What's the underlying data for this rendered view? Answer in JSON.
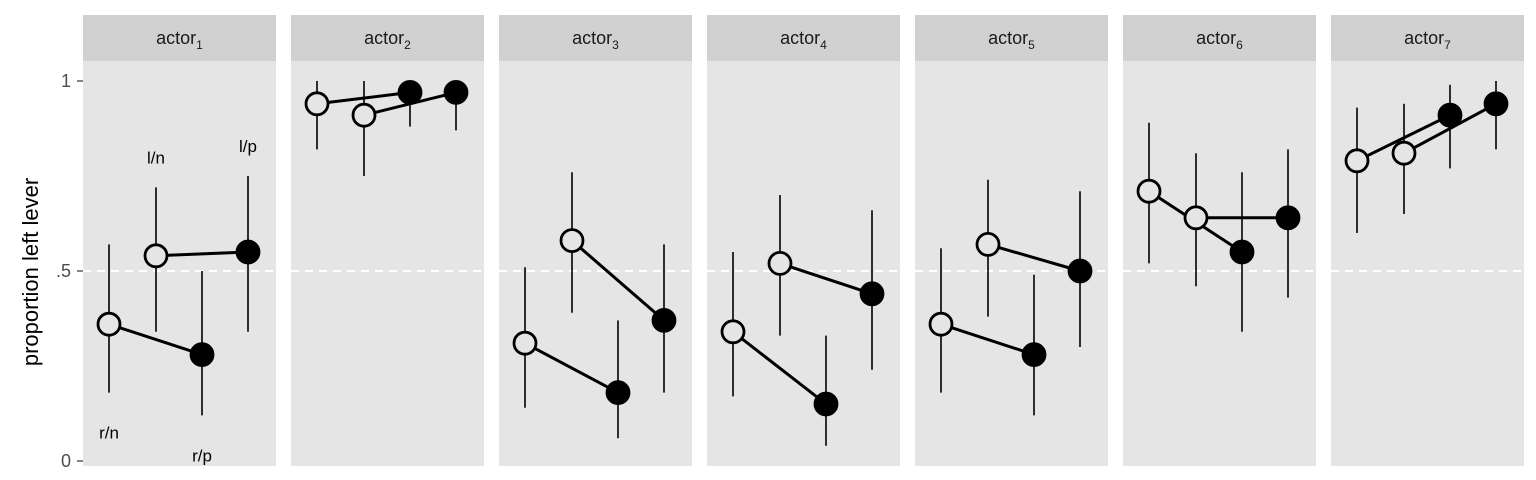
{
  "chart_data": {
    "type": "scatter",
    "ylabel": "proportion left lever",
    "ylim": [
      0,
      1
    ],
    "yticks": [
      0,
      0.5,
      1
    ],
    "ytick_labels": [
      "0",
      ".5",
      "1"
    ],
    "reference_line": 0.5,
    "conditions": [
      "r/n",
      "l/n",
      "r/p",
      "l/p"
    ],
    "condition_fill": [
      "open",
      "open",
      "filled",
      "filled"
    ],
    "line_pairs": [
      [
        0,
        2
      ],
      [
        1,
        3
      ]
    ],
    "annotations": [
      {
        "panel": 0,
        "condition": "r/n",
        "text": "r/n",
        "placement": "below"
      },
      {
        "panel": 0,
        "condition": "l/n",
        "text": "l/n",
        "placement": "above"
      },
      {
        "panel": 0,
        "condition": "r/p",
        "text": "r/p",
        "placement": "below"
      },
      {
        "panel": 0,
        "condition": "l/p",
        "text": "l/p",
        "placement": "above"
      }
    ],
    "panels": [
      {
        "label": "actor",
        "sub": "1",
        "values": [
          0.36,
          0.54,
          0.28,
          0.55
        ],
        "lower": [
          0.18,
          0.34,
          0.12,
          0.34
        ],
        "upper": [
          0.57,
          0.72,
          0.5,
          0.75
        ]
      },
      {
        "label": "actor",
        "sub": "2",
        "values": [
          0.94,
          0.91,
          0.97,
          0.97
        ],
        "lower": [
          0.82,
          0.75,
          0.88,
          0.87
        ],
        "upper": [
          1.0,
          1.0,
          1.0,
          1.0
        ]
      },
      {
        "label": "actor",
        "sub": "3",
        "values": [
          0.31,
          0.58,
          0.18,
          0.37
        ],
        "lower": [
          0.14,
          0.39,
          0.06,
          0.18
        ],
        "upper": [
          0.51,
          0.76,
          0.37,
          0.57
        ]
      },
      {
        "label": "actor",
        "sub": "4",
        "values": [
          0.34,
          0.52,
          0.15,
          0.44
        ],
        "lower": [
          0.17,
          0.33,
          0.04,
          0.24
        ],
        "upper": [
          0.55,
          0.7,
          0.33,
          0.66
        ]
      },
      {
        "label": "actor",
        "sub": "5",
        "values": [
          0.36,
          0.57,
          0.28,
          0.5
        ],
        "lower": [
          0.18,
          0.38,
          0.12,
          0.3
        ],
        "upper": [
          0.56,
          0.74,
          0.49,
          0.71
        ]
      },
      {
        "label": "actor",
        "sub": "6",
        "values": [
          0.71,
          0.64,
          0.55,
          0.64
        ],
        "lower": [
          0.52,
          0.46,
          0.34,
          0.43
        ],
        "upper": [
          0.89,
          0.81,
          0.76,
          0.82
        ]
      },
      {
        "label": "actor",
        "sub": "7",
        "values": [
          0.79,
          0.81,
          0.91,
          0.94
        ],
        "lower": [
          0.6,
          0.65,
          0.77,
          0.82
        ],
        "upper": [
          0.93,
          0.94,
          0.99,
          1.0
        ]
      }
    ],
    "colors": {
      "panel_bg": "#e5e5e5",
      "strip_bg": "#d1d1d1",
      "point": "#000000",
      "reference_line": "#ffffff"
    }
  }
}
